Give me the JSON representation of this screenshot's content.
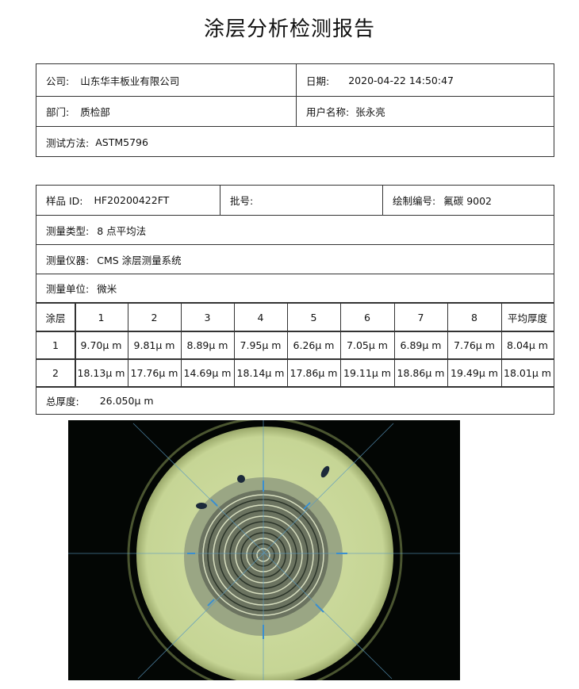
{
  "title": "涂层分析检测报告",
  "info": {
    "company_label": "公司:",
    "company": "山东华丰板业有限公司",
    "date_label": "日期:",
    "date": "2020-04-22 14:50:47",
    "dept_label": "部门:",
    "dept": "质检部",
    "user_label": "用户名称:",
    "user": "张永亮",
    "method_label": "测试方法:",
    "method": "ASTM5796"
  },
  "sample": {
    "id_label": "样品 ID:",
    "id": "HF20200422FT",
    "batch_label": "批号:",
    "batch": "",
    "drawing_label": "绘制编号:",
    "drawing": "氟碳 9002",
    "type_label": "测量类型:",
    "type": "8 点平均法",
    "instrument_label": "测量仪器:",
    "instrument": "CMS 涂层测量系统",
    "unit_label": "测量单位:",
    "unit": "微米"
  },
  "measurements": {
    "headers": [
      "涂层",
      "1",
      "2",
      "3",
      "4",
      "5",
      "6",
      "7",
      "8",
      "平均厚度"
    ],
    "rows": [
      [
        "1",
        "9.70μ m",
        "9.81μ m",
        "8.89μ m",
        "7.95μ m",
        "6.26μ m",
        "7.05μ m",
        "6.89μ m",
        "7.76μ m",
        "8.04μ m"
      ],
      [
        "2",
        "18.13μ m",
        "17.76μ m",
        "14.69μ m",
        "18.14μ m",
        "17.86μ m",
        "19.11μ m",
        "18.86μ m",
        "19.49μ m",
        "18.01μ m"
      ]
    ],
    "total_label": "总厚度:",
    "total": "26.050μ m"
  },
  "colors": {
    "coating": "#c9d99a",
    "overlay": "#3a8fd0",
    "background": "#030604"
  }
}
